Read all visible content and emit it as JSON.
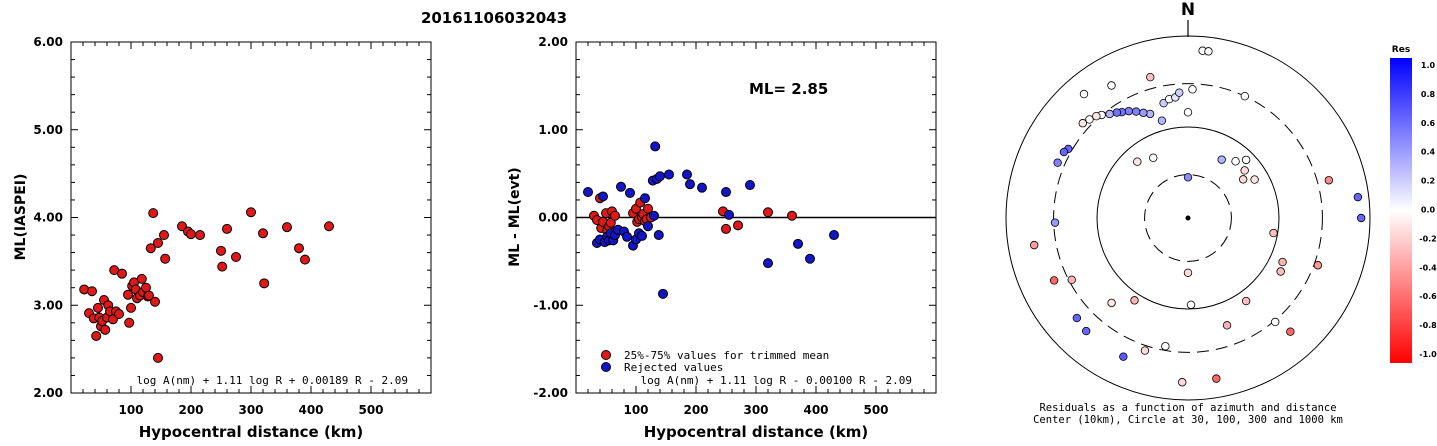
{
  "title": "20161106032043",
  "colors": {
    "red": "#e01818",
    "blue": "#1414c8"
  },
  "left_panel": {
    "ylabel": "ML(IASPEI)",
    "xlabel": "Hypocentral distance (km)",
    "formula": "log A(nm) + 1.11 log R + 0.00189 R - 2.09",
    "yticks": [
      "2.00",
      "3.00",
      "4.00",
      "5.00",
      "6.00"
    ],
    "xticks": [
      "100",
      "200",
      "300",
      "400",
      "500"
    ]
  },
  "middle_panel": {
    "ylabel": "ML - ML(evt)",
    "xlabel": "Hypocentral distance (km)",
    "ml_label": "ML= 2.85",
    "legend_trimmed": "25%-75% values for trimmed mean",
    "legend_rejected": "Rejected values",
    "formula": "log A(nm) + 1.11 log R - 0.00100 R - 2.09",
    "yticks": [
      "-2.00",
      "-1.00",
      "0.00",
      "1.00",
      "2.00"
    ],
    "xticks": [
      "100",
      "200",
      "300",
      "400",
      "500"
    ]
  },
  "right_panel": {
    "north": "N",
    "caption1": "Residuals as a function of azimuth and distance",
    "caption2": "Center (10km), Circle at 30, 100, 300 and 1000 km",
    "colorbar_title": "Res",
    "colorbar_ticks": [
      "1.0",
      "0.8",
      "0.6",
      "0.4",
      "0.2",
      "0.0",
      "-0.2",
      "-0.4",
      "-0.6",
      "-0.8",
      "-1.0"
    ]
  },
  "chart_data": [
    {
      "type": "scatter",
      "title": "20161106032043",
      "xlabel": "Hypocentral distance (km)",
      "ylabel": "ML(IASPEI)",
      "xlim": [
        0,
        600
      ],
      "ylim": [
        2.0,
        6.0
      ],
      "series": [
        {
          "color": "#e01818",
          "x": [
            22,
            30,
            35,
            38,
            42,
            45,
            47,
            50,
            52,
            55,
            57,
            60,
            62,
            65,
            70,
            72,
            75,
            80,
            85,
            95,
            97,
            100,
            102,
            105,
            108,
            110,
            115,
            118,
            120,
            125,
            128,
            130,
            133,
            137,
            140,
            145,
            155,
            157,
            185,
            195,
            200,
            215,
            250,
            252,
            260,
            275,
            300,
            320,
            322,
            360,
            380,
            390,
            430
          ],
          "y": [
            3.18,
            2.91,
            3.16,
            2.85,
            2.65,
            2.97,
            2.86,
            2.76,
            2.82,
            3.06,
            2.72,
            2.86,
            3.0,
            2.93,
            2.84,
            3.4,
            2.93,
            2.9,
            3.36,
            3.12,
            2.8,
            2.97,
            3.22,
            3.26,
            3.18,
            3.08,
            3.11,
            3.3,
            3.15,
            3.2,
            3.1,
            3.11,
            3.65,
            4.05,
            3.04,
            3.71,
            3.8,
            3.53,
            3.9,
            3.84,
            3.81,
            3.8,
            3.62,
            3.44,
            3.87,
            3.55,
            4.06,
            3.82,
            3.25,
            3.89,
            3.65,
            3.52,
            3.9
          ]
        },
        {
          "color": "#e01818",
          "x": [
            145
          ],
          "y": [
            2.4
          ]
        }
      ]
    },
    {
      "type": "scatter",
      "xlabel": "Hypocentral distance (km)",
      "ylabel": "ML - ML(evt)",
      "xlim": [
        0,
        600
      ],
      "ylim": [
        -2.0,
        2.0
      ],
      "hline": 0.0,
      "series": [
        {
          "name": "25%-75% values for trimmed mean",
          "color": "#e01818",
          "x": [
            30,
            35,
            40,
            42,
            45,
            50,
            52,
            55,
            58,
            60,
            65,
            95,
            100,
            102,
            105,
            107,
            110,
            112,
            115,
            118,
            120,
            125,
            245,
            250,
            270,
            320,
            360
          ],
          "y": [
            0.02,
            -0.03,
            0.22,
            -0.12,
            -0.05,
            0.05,
            -0.15,
            -0.1,
            -0.06,
            0.07,
            0.02,
            0.05,
            0.1,
            -0.05,
            -0.02,
            0.17,
            0.0,
            0.04,
            -0.04,
            -0.02,
            0.1,
            0.0,
            0.07,
            -0.13,
            -0.09,
            0.06,
            0.02
          ]
        },
        {
          "name": "Rejected values",
          "color": "#1414c8",
          "x": [
            20,
            35,
            40,
            45,
            48,
            52,
            55,
            58,
            62,
            65,
            70,
            75,
            80,
            85,
            90,
            95,
            100,
            105,
            110,
            115,
            120,
            128,
            130,
            132,
            135,
            138,
            140,
            145,
            155,
            185,
            190,
            210,
            250,
            255,
            290,
            320,
            370,
            390,
            430
          ],
          "y": [
            0.29,
            -0.29,
            -0.25,
            0.24,
            -0.28,
            -0.22,
            -0.26,
            -0.18,
            -0.26,
            -0.2,
            -0.14,
            0.35,
            -0.16,
            -0.22,
            0.28,
            -0.32,
            -0.25,
            -0.18,
            -0.21,
            0.22,
            -0.1,
            0.42,
            0.02,
            0.81,
            0.44,
            -0.2,
            0.47,
            -0.87,
            0.49,
            0.49,
            0.38,
            0.34,
            0.29,
            0.03,
            0.37,
            -0.52,
            -0.3,
            -0.47,
            -0.2
          ]
        }
      ]
    },
    {
      "type": "scatter",
      "subtype": "polar",
      "title": "Residuals as a function of azimuth and distance",
      "rings_km": [
        30,
        100,
        300,
        1000
      ],
      "center_km": 10,
      "colorbar_range": [
        -1.0,
        1.0
      ],
      "points": [
        {
          "az": 5,
          "dist": 700,
          "res": 0.0
        },
        {
          "az": 7,
          "dist": 700,
          "res": 0.0
        },
        {
          "az": 330,
          "dist": 480,
          "res": 0.0
        },
        {
          "az": 320,
          "dist": 600,
          "res": 0.0
        },
        {
          "az": 345,
          "dist": 400,
          "res": -0.25
        },
        {
          "az": 0,
          "dist": 145,
          "res": 0.0
        },
        {
          "az": 25,
          "dist": 300,
          "res": 0.0
        },
        {
          "az": 30,
          "dist": 55,
          "res": 0.3
        },
        {
          "az": 40,
          "dist": 65,
          "res": 0.0
        },
        {
          "az": 45,
          "dist": 80,
          "res": 0.0
        },
        {
          "az": 55,
          "dist": 55,
          "res": -0.15
        },
        {
          "az": 50,
          "dist": 65,
          "res": -0.15
        },
        {
          "az": 60,
          "dist": 70,
          "res": -0.1
        },
        {
          "az": 330,
          "dist": 58,
          "res": 0.0
        },
        {
          "az": 318,
          "dist": 68,
          "res": -0.1
        },
        {
          "az": 0,
          "dist": 28,
          "res": 0.45
        },
        {
          "az": 345,
          "dist": 128,
          "res": 0.3
        },
        {
          "az": 340,
          "dist": 165,
          "res": 0.3
        },
        {
          "az": 337,
          "dist": 180,
          "res": 0.4
        },
        {
          "az": 334,
          "dist": 200,
          "res": 0.5
        },
        {
          "az": 331,
          "dist": 220,
          "res": 0.5
        },
        {
          "az": 328,
          "dist": 235,
          "res": 0.55
        },
        {
          "az": 326,
          "dist": 250,
          "res": 0.55
        },
        {
          "az": 323,
          "dist": 270,
          "res": 0.3
        },
        {
          "az": 320,
          "dist": 300,
          "res": 0.0
        },
        {
          "az": 318,
          "dist": 320,
          "res": -0.1
        },
        {
          "az": 315,
          "dist": 340,
          "res": 0.0
        },
        {
          "az": 312,
          "dist": 360,
          "res": -0.1
        },
        {
          "az": 348,
          "dist": 195,
          "res": 0.2
        },
        {
          "az": 351,
          "dist": 210,
          "res": 0.0
        },
        {
          "az": 354,
          "dist": 215,
          "res": 0.1
        },
        {
          "az": 356,
          "dist": 240,
          "res": 0.2
        },
        {
          "az": 2,
          "dist": 260,
          "res": 0.0
        },
        {
          "az": 300,
          "dist": 330,
          "res": 0.6
        },
        {
          "az": 298,
          "dist": 350,
          "res": 0.6
        },
        {
          "az": 293,
          "dist": 360,
          "res": 0.5
        },
        {
          "az": 75,
          "dist": 400,
          "res": -0.45
        },
        {
          "az": 83,
          "dist": 760,
          "res": 0.6
        },
        {
          "az": 90,
          "dist": 800,
          "res": 0.6
        },
        {
          "az": 100,
          "dist": 90,
          "res": -0.25
        },
        {
          "az": 115,
          "dist": 140,
          "res": -0.3
        },
        {
          "az": 120,
          "dist": 150,
          "res": -0.25
        },
        {
          "az": 110,
          "dist": 330,
          "res": -0.4
        },
        {
          "az": 180,
          "dist": 40,
          "res": -0.15
        },
        {
          "az": 178,
          "dist": 90,
          "res": 0.0
        },
        {
          "az": 145,
          "dist": 130,
          "res": -0.25
        },
        {
          "az": 160,
          "dist": 180,
          "res": -0.3
        },
        {
          "az": 140,
          "dist": 310,
          "res": 0.0
        },
        {
          "az": 138,
          "dist": 480,
          "res": -0.6
        },
        {
          "az": 170,
          "dist": 620,
          "res": -0.6
        },
        {
          "az": 182,
          "dist": 640,
          "res": -0.15
        },
        {
          "az": 190,
          "dist": 270,
          "res": 0.0
        },
        {
          "az": 198,
          "dist": 340,
          "res": -0.15
        },
        {
          "az": 213,
          "dist": 120,
          "res": -0.3
        },
        {
          "az": 222,
          "dist": 180,
          "res": -0.1
        },
        {
          "az": 242,
          "dist": 280,
          "res": -0.3
        },
        {
          "az": 245,
          "dist": 420,
          "res": -0.6
        },
        {
          "az": 260,
          "dist": 520,
          "res": -0.4
        },
        {
          "az": 228,
          "dist": 440,
          "res": 0.6
        },
        {
          "az": 222,
          "dist": 470,
          "res": 0.6
        },
        {
          "az": 205,
          "dist": 480,
          "res": 0.65
        },
        {
          "az": 268,
          "dist": 290,
          "res": 0.4
        }
      ]
    }
  ]
}
